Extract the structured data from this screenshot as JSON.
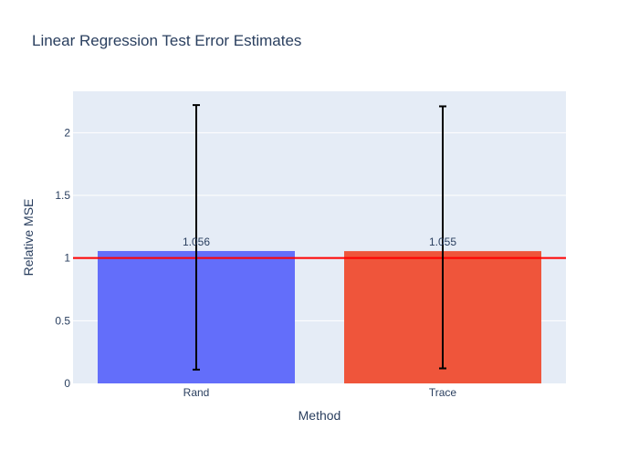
{
  "chart_data": {
    "type": "bar",
    "title": "Linear Regression Test Error Estimates",
    "xlabel": "Method",
    "ylabel": "Relative MSE",
    "categories": [
      "Rand",
      "Trace"
    ],
    "values": [
      1.056,
      1.055
    ],
    "data_labels": [
      "1.056",
      "1.055"
    ],
    "error_bars": [
      {
        "low": 0.11,
        "high": 2.22
      },
      {
        "low": 0.12,
        "high": 2.21
      }
    ],
    "colors": [
      "#636efa",
      "#ef553b"
    ],
    "ylim": [
      0,
      2.33
    ],
    "yticks": [
      0,
      0.5,
      1,
      1.5,
      2
    ],
    "ytick_labels": [
      "0",
      "0.5",
      "1",
      "1.5",
      "2"
    ],
    "reference_line": {
      "y": 1,
      "color": "#ff0000"
    },
    "grid": true,
    "plot_background": "#e5ecf6",
    "text_color": "#2a3f5f"
  }
}
